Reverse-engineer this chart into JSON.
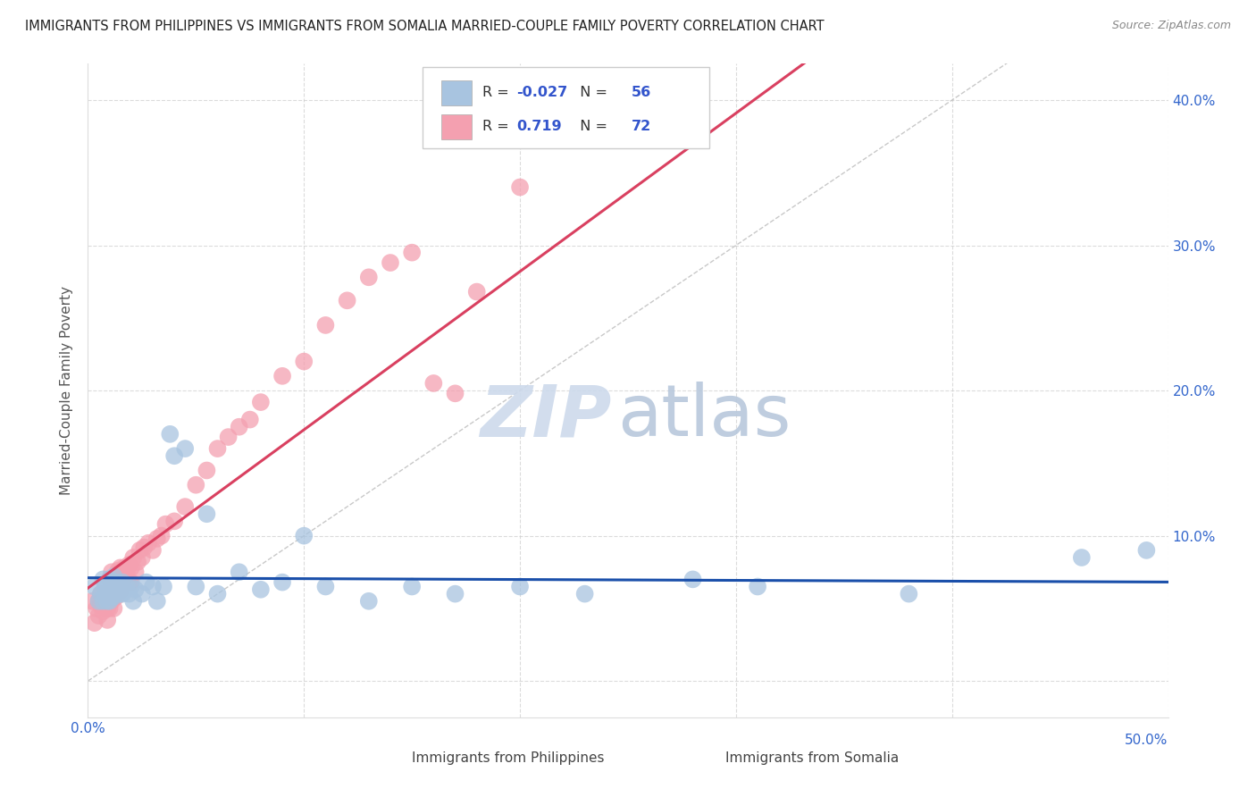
{
  "title": "IMMIGRANTS FROM PHILIPPINES VS IMMIGRANTS FROM SOMALIA MARRIED-COUPLE FAMILY POVERTY CORRELATION CHART",
  "source": "Source: ZipAtlas.com",
  "ylabel": "Married-Couple Family Poverty",
  "xlim": [
    0.0,
    0.5
  ],
  "ylim": [
    -0.025,
    0.425
  ],
  "xticks": [
    0.0,
    0.1,
    0.2,
    0.3,
    0.4,
    0.5
  ],
  "yticks": [
    0.0,
    0.1,
    0.2,
    0.3,
    0.4
  ],
  "xtick_labels_left": [
    "0.0%",
    "",
    "",
    "",
    "",
    ""
  ],
  "xtick_labels_right": [
    "",
    "",
    "",
    "",
    "",
    "50.0%"
  ],
  "ytick_labels_right": [
    "",
    "10.0%",
    "20.0%",
    "30.0%",
    "40.0%"
  ],
  "philippines_R": -0.027,
  "philippines_N": 56,
  "somalia_R": 0.719,
  "somalia_N": 72,
  "philippines_color": "#a8c4e0",
  "somalia_color": "#f4a0b0",
  "philippines_line_color": "#1a4faa",
  "somalia_line_color": "#d94060",
  "ref_line_color": "#bbbbbb",
  "background_color": "#ffffff",
  "grid_color": "#cccccc",
  "phil_x": [
    0.003,
    0.005,
    0.006,
    0.007,
    0.007,
    0.008,
    0.008,
    0.009,
    0.009,
    0.009,
    0.01,
    0.01,
    0.01,
    0.011,
    0.011,
    0.012,
    0.012,
    0.013,
    0.013,
    0.014,
    0.015,
    0.015,
    0.016,
    0.016,
    0.017,
    0.018,
    0.019,
    0.02,
    0.021,
    0.022,
    0.025,
    0.027,
    0.03,
    0.032,
    0.035,
    0.038,
    0.04,
    0.045,
    0.05,
    0.055,
    0.06,
    0.07,
    0.08,
    0.09,
    0.1,
    0.11,
    0.13,
    0.15,
    0.17,
    0.2,
    0.23,
    0.28,
    0.31,
    0.38,
    0.46,
    0.49
  ],
  "phil_y": [
    0.065,
    0.055,
    0.06,
    0.055,
    0.07,
    0.06,
    0.065,
    0.055,
    0.065,
    0.068,
    0.055,
    0.06,
    0.07,
    0.058,
    0.063,
    0.058,
    0.072,
    0.06,
    0.068,
    0.065,
    0.06,
    0.065,
    0.06,
    0.068,
    0.063,
    0.065,
    0.06,
    0.065,
    0.055,
    0.063,
    0.06,
    0.068,
    0.065,
    0.055,
    0.065,
    0.17,
    0.155,
    0.16,
    0.065,
    0.115,
    0.06,
    0.075,
    0.063,
    0.068,
    0.1,
    0.065,
    0.055,
    0.065,
    0.06,
    0.065,
    0.06,
    0.07,
    0.065,
    0.06,
    0.085,
    0.09
  ],
  "som_x": [
    0.002,
    0.003,
    0.004,
    0.005,
    0.005,
    0.006,
    0.006,
    0.007,
    0.007,
    0.008,
    0.008,
    0.009,
    0.009,
    0.009,
    0.01,
    0.01,
    0.01,
    0.01,
    0.011,
    0.011,
    0.011,
    0.012,
    0.012,
    0.012,
    0.013,
    0.013,
    0.014,
    0.014,
    0.014,
    0.015,
    0.015,
    0.016,
    0.016,
    0.017,
    0.017,
    0.018,
    0.018,
    0.019,
    0.019,
    0.02,
    0.02,
    0.021,
    0.022,
    0.023,
    0.024,
    0.025,
    0.026,
    0.028,
    0.03,
    0.032,
    0.034,
    0.036,
    0.04,
    0.045,
    0.05,
    0.055,
    0.06,
    0.065,
    0.07,
    0.075,
    0.08,
    0.09,
    0.1,
    0.11,
    0.12,
    0.13,
    0.14,
    0.15,
    0.16,
    0.17,
    0.18,
    0.2
  ],
  "som_y": [
    0.055,
    0.04,
    0.05,
    0.045,
    0.055,
    0.052,
    0.06,
    0.048,
    0.055,
    0.052,
    0.06,
    0.042,
    0.05,
    0.06,
    0.05,
    0.055,
    0.062,
    0.07,
    0.055,
    0.065,
    0.075,
    0.05,
    0.06,
    0.068,
    0.058,
    0.068,
    0.062,
    0.07,
    0.076,
    0.062,
    0.078,
    0.068,
    0.075,
    0.07,
    0.078,
    0.068,
    0.076,
    0.068,
    0.08,
    0.068,
    0.078,
    0.085,
    0.075,
    0.082,
    0.09,
    0.085,
    0.092,
    0.095,
    0.09,
    0.098,
    0.1,
    0.108,
    0.11,
    0.12,
    0.135,
    0.145,
    0.16,
    0.168,
    0.175,
    0.18,
    0.192,
    0.21,
    0.22,
    0.245,
    0.262,
    0.278,
    0.288,
    0.295,
    0.205,
    0.198,
    0.268,
    0.34
  ],
  "watermark_zip": "ZIP",
  "watermark_atlas": "atlas",
  "watermark_color_zip": "#c8d8ec",
  "watermark_color_atlas": "#c0cce0"
}
